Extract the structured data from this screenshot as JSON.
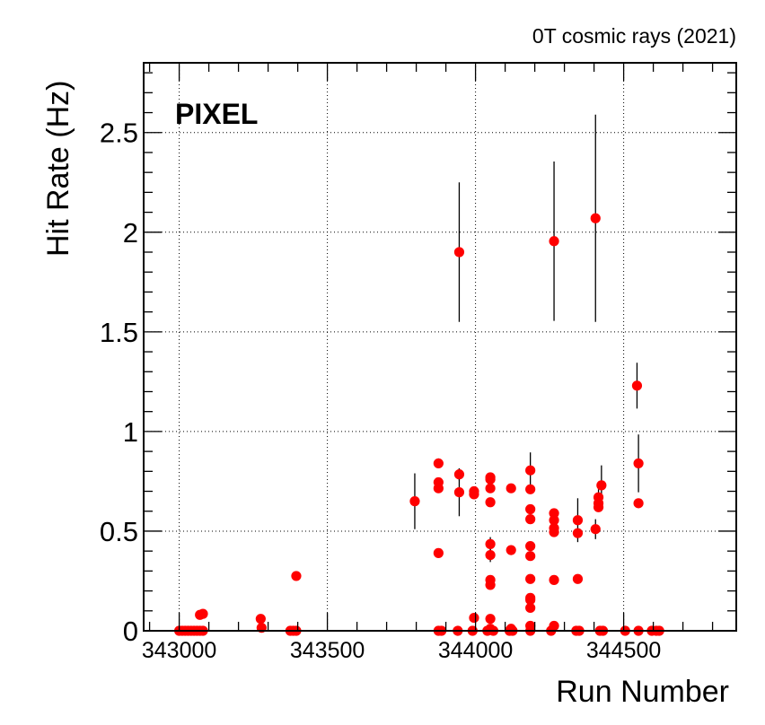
{
  "chart_data": {
    "type": "scatter",
    "title": "0T cosmic rays (2021)",
    "annotation": "PIXEL",
    "xlabel": "Run Number",
    "ylabel": "Hit Rate (Hz)",
    "xlim": [
      342880,
      344880
    ],
    "ylim": [
      0,
      2.85
    ],
    "xticks": [
      343000,
      343500,
      344000,
      344500
    ],
    "xtick_labels": [
      "343000",
      "343500",
      "344000",
      "344500"
    ],
    "yticks": [
      0,
      0.5,
      1,
      1.5,
      2,
      2.5
    ],
    "ytick_labels": [
      "0",
      "0.5",
      "1",
      "1.5",
      "2",
      "2.5"
    ],
    "grid": true,
    "marker_color": "#ff0000",
    "error_bar_color": "#000000",
    "points": [
      {
        "x": 343000,
        "y": 0
      },
      {
        "x": 343010,
        "y": 0
      },
      {
        "x": 343020,
        "y": 0
      },
      {
        "x": 343030,
        "y": 0
      },
      {
        "x": 343040,
        "y": 0
      },
      {
        "x": 343050,
        "y": 0
      },
      {
        "x": 343060,
        "y": 0
      },
      {
        "x": 343070,
        "y": 0
      },
      {
        "x": 343080,
        "y": 0
      },
      {
        "x": 343070,
        "y": 0.08
      },
      {
        "x": 343080,
        "y": 0.085
      },
      {
        "x": 343275,
        "y": 0.06
      },
      {
        "x": 343278,
        "y": 0.015
      },
      {
        "x": 343375,
        "y": 0
      },
      {
        "x": 343385,
        "y": 0
      },
      {
        "x": 343395,
        "y": 0
      },
      {
        "x": 343395,
        "y": 0.275
      },
      {
        "x": 343795,
        "y": 0.65,
        "err": 0.14
      },
      {
        "x": 343875,
        "y": 0.84,
        "err": 0.025
      },
      {
        "x": 343875,
        "y": 0.745
      },
      {
        "x": 343875,
        "y": 0.715
      },
      {
        "x": 343875,
        "y": 0.39
      },
      {
        "x": 343875,
        "y": 0
      },
      {
        "x": 343885,
        "y": 0
      },
      {
        "x": 343945,
        "y": 1.9,
        "err": 0.35
      },
      {
        "x": 343945,
        "y": 0.785,
        "err": 0.03
      },
      {
        "x": 343945,
        "y": 0.695,
        "err": 0.12
      },
      {
        "x": 343940,
        "y": 0
      },
      {
        "x": 343995,
        "y": 0.7
      },
      {
        "x": 343995,
        "y": 0.685
      },
      {
        "x": 343995,
        "y": 0.065
      },
      {
        "x": 343990,
        "y": 0
      },
      {
        "x": 344050,
        "y": 0.77
      },
      {
        "x": 344050,
        "y": 0.76
      },
      {
        "x": 344050,
        "y": 0.715
      },
      {
        "x": 344050,
        "y": 0.645
      },
      {
        "x": 344050,
        "y": 0.435,
        "err": 0.035
      },
      {
        "x": 344050,
        "y": 0.38,
        "err": 0.035
      },
      {
        "x": 344050,
        "y": 0.255
      },
      {
        "x": 344050,
        "y": 0.23
      },
      {
        "x": 344050,
        "y": 0.06
      },
      {
        "x": 344050,
        "y": 0.01
      },
      {
        "x": 344040,
        "y": 0
      },
      {
        "x": 344060,
        "y": 0
      },
      {
        "x": 344120,
        "y": 0.715
      },
      {
        "x": 344120,
        "y": 0.405,
        "err": 0.025
      },
      {
        "x": 344120,
        "y": 0.01
      },
      {
        "x": 344115,
        "y": 0
      },
      {
        "x": 344125,
        "y": 0
      },
      {
        "x": 344185,
        "y": 0.805,
        "err": 0.09
      },
      {
        "x": 344185,
        "y": 0.71
      },
      {
        "x": 344185,
        "y": 0.61
      },
      {
        "x": 344185,
        "y": 0.56
      },
      {
        "x": 344185,
        "y": 0.425
      },
      {
        "x": 344185,
        "y": 0.375
      },
      {
        "x": 344185,
        "y": 0.26
      },
      {
        "x": 344185,
        "y": 0.165
      },
      {
        "x": 344185,
        "y": 0.155
      },
      {
        "x": 344185,
        "y": 0.115
      },
      {
        "x": 344185,
        "y": 0.025
      },
      {
        "x": 344185,
        "y": 0
      },
      {
        "x": 344265,
        "y": 1.955,
        "err": 0.4
      },
      {
        "x": 344265,
        "y": 0.59
      },
      {
        "x": 344265,
        "y": 0.555
      },
      {
        "x": 344265,
        "y": 0.515
      },
      {
        "x": 344265,
        "y": 0.495
      },
      {
        "x": 344265,
        "y": 0.255,
        "err": 0.015
      },
      {
        "x": 344265,
        "y": 0.025
      },
      {
        "x": 344255,
        "y": 0
      },
      {
        "x": 344345,
        "y": 0.555,
        "err": 0.11
      },
      {
        "x": 344345,
        "y": 0.49
      },
      {
        "x": 344345,
        "y": 0.26
      },
      {
        "x": 344340,
        "y": 0
      },
      {
        "x": 344350,
        "y": 0
      },
      {
        "x": 344405,
        "y": 2.07,
        "err": 0.52
      },
      {
        "x": 344405,
        "y": 0.51,
        "err": 0.05
      },
      {
        "x": 344415,
        "y": 0.67,
        "err": 0.04
      },
      {
        "x": 344415,
        "y": 0.64
      },
      {
        "x": 344415,
        "y": 0.62
      },
      {
        "x": 344425,
        "y": 0.73,
        "err": 0.1
      },
      {
        "x": 344420,
        "y": 0
      },
      {
        "x": 344430,
        "y": 0
      },
      {
        "x": 344505,
        "y": 0
      },
      {
        "x": 344545,
        "y": 1.23,
        "err": 0.115
      },
      {
        "x": 344550,
        "y": 0.84,
        "err": 0.145
      },
      {
        "x": 344550,
        "y": 0.64
      },
      {
        "x": 344550,
        "y": 0
      },
      {
        "x": 344595,
        "y": 0
      },
      {
        "x": 344610,
        "y": 0
      },
      {
        "x": 344620,
        "y": 0
      }
    ]
  }
}
